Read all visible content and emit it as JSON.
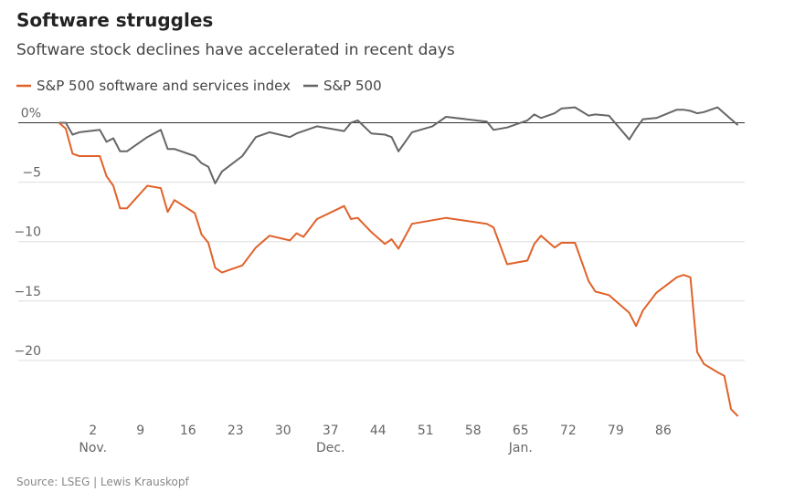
{
  "chart_data": {
    "type": "line",
    "title": "Software struggles",
    "subtitle": "Software stock declines have accelerated in recent days",
    "source": "Source: LSEG | Lewis Krauskopf",
    "x": [
      -3,
      -2,
      -1,
      0,
      3,
      4,
      5,
      6,
      7,
      10,
      12,
      13,
      14,
      17,
      18,
      19,
      20,
      21,
      24,
      26,
      28,
      31,
      32,
      33,
      35,
      39,
      40,
      41,
      43,
      45,
      46,
      47,
      49,
      52,
      54,
      60,
      61,
      63,
      66,
      67,
      68,
      70,
      71,
      73,
      75,
      76,
      78,
      81,
      82,
      83,
      85,
      88,
      89,
      90,
      91,
      92,
      94,
      95,
      96,
      97
    ],
    "series": [
      {
        "name": "S&P 500 software and services index",
        "color": "#e0622a",
        "values": [
          0,
          -0.5,
          -2.6,
          -2.8,
          -2.8,
          -4.5,
          -5.3,
          -7.2,
          -7.2,
          -5.3,
          -5.5,
          -7.5,
          -6.5,
          -7.6,
          -9.4,
          -10.1,
          -12.2,
          -12.6,
          -12,
          -10.5,
          -9.5,
          -9.9,
          -9.3,
          -9.6,
          -8.1,
          -7,
          -8.1,
          -8,
          -9.2,
          -10.2,
          -9.8,
          -10.6,
          -8.5,
          -8.2,
          -8,
          -8.5,
          -8.8,
          -11.9,
          -11.6,
          -10.2,
          -9.5,
          -10.5,
          -10.1,
          -10.1,
          -13.3,
          -14.2,
          -14.5,
          -16,
          -17.1,
          -15.8,
          -14.3,
          -13,
          -12.8,
          -13,
          -19.3,
          -20.3,
          -21,
          -21.3,
          -24.1,
          -24.7
        ]
      },
      {
        "name": "S&P 500",
        "color": "#666666",
        "values": [
          0,
          0,
          -1,
          -0.8,
          -0.6,
          -1.6,
          -1.3,
          -2.4,
          -2.4,
          -1.2,
          -0.6,
          -2.2,
          -2.2,
          -2.8,
          -3.4,
          -3.7,
          -5.1,
          -4.1,
          -2.8,
          -1.2,
          -0.8,
          -1.2,
          -0.9,
          -0.7,
          -0.3,
          -0.7,
          0,
          0.2,
          -0.9,
          -1,
          -1.2,
          -2.4,
          -0.8,
          -0.3,
          0.5,
          0.1,
          -0.6,
          -0.4,
          0.2,
          0.7,
          0.4,
          0.8,
          1.2,
          1.3,
          0.6,
          0.7,
          0.6,
          -1.4,
          -0.5,
          0.3,
          0.4,
          1.1,
          1.1,
          1,
          0.8,
          0.9,
          1.3,
          0.8,
          0.3,
          -0.2
        ]
      }
    ],
    "xlim": [
      -9,
      98
    ],
    "xticks": [
      2,
      9,
      16,
      23,
      30,
      37,
      44,
      51,
      58,
      65,
      72,
      79,
      86
    ],
    "month_labels": [
      {
        "value": 2,
        "label": "Nov."
      },
      {
        "value": 37,
        "label": "Dec."
      },
      {
        "value": 65,
        "label": "Jan."
      }
    ],
    "ylim": [
      -25,
      1.5
    ],
    "yticks": [
      {
        "value": 0,
        "label": "0%"
      },
      {
        "value": -5,
        "label": "−5"
      },
      {
        "value": -10,
        "label": "−10"
      },
      {
        "value": -15,
        "label": "−15"
      },
      {
        "value": -20,
        "label": "−20"
      }
    ],
    "grid": true
  }
}
